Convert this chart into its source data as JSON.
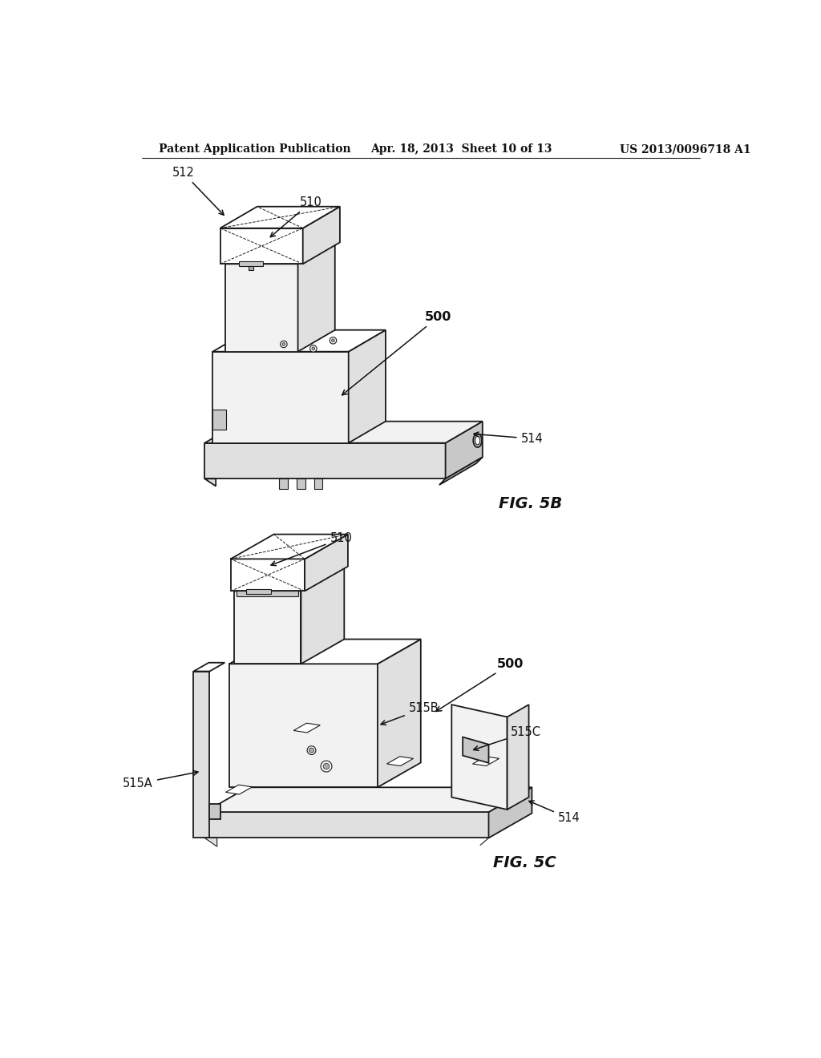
{
  "bg": "#ffffff",
  "lc": "#1a1a1a",
  "fc_white": "#ffffff",
  "fc_light": "#f2f2f2",
  "fc_mid": "#e0e0e0",
  "fc_dark": "#c8c8c8",
  "fc_darker": "#b0b0b0",
  "header_left": "Patent Application Publication",
  "header_center": "Apr. 18, 2013  Sheet 10 of 13",
  "header_right": "US 2013/0096718 A1",
  "lw": 1.3,
  "lw_thin": 0.8,
  "lw_dashed": 0.7
}
